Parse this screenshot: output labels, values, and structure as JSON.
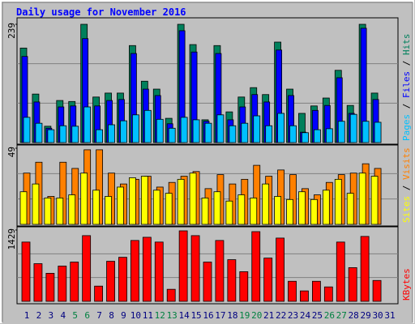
{
  "title": "Daily usage for November 2016",
  "chart_data": [
    {
      "type": "bar",
      "ylim": [
        0,
        239
      ],
      "yticks": [
        239
      ],
      "legend_separator": " / ",
      "series": [
        {
          "name": "Hits",
          "color": "#00805c",
          "values": [
            191,
            98,
            33,
            85,
            83,
            239,
            92,
            100,
            100,
            196,
            124,
            108,
            49,
            239,
            198,
            46,
            196,
            62,
            92,
            111,
            97,
            203,
            108,
            59,
            74,
            90,
            146,
            75,
            239,
            100,
            0
          ]
        },
        {
          "name": "Files",
          "color": "#0000ff",
          "values": [
            174,
            82,
            29,
            72,
            74,
            210,
            74,
            85,
            87,
            180,
            108,
            95,
            38,
            226,
            183,
            43,
            180,
            46,
            72,
            97,
            82,
            187,
            95,
            21,
            65,
            75,
            131,
            59,
            231,
            87,
            0
          ]
        },
        {
          "name": "Pages",
          "color": "#00c0ff",
          "values": [
            51,
            39,
            26,
            34,
            33,
            72,
            26,
            36,
            44,
            56,
            65,
            47,
            29,
            51,
            46,
            39,
            56,
            34,
            39,
            54,
            34,
            59,
            34,
            20,
            26,
            28,
            43,
            57,
            43,
            41,
            0
          ]
        }
      ]
    },
    {
      "type": "bar",
      "ylim": [
        0,
        49
      ],
      "yticks": [
        49
      ],
      "legend_separator": " / ",
      "series": [
        {
          "name": "Visits",
          "color": "#ff8000",
          "values": [
            33,
            40,
            18,
            40,
            36,
            48,
            48,
            33,
            26,
            29,
            31,
            24,
            27,
            31,
            34,
            23,
            32,
            26,
            29,
            38,
            31,
            35,
            32,
            23,
            19,
            27,
            32,
            33,
            39,
            36,
            0
          ]
        },
        {
          "name": "Sites",
          "color": "#ffff00",
          "values": [
            21,
            26,
            17,
            17,
            19,
            33,
            22,
            18,
            24,
            30,
            31,
            22,
            20,
            29,
            33,
            17,
            21,
            15,
            19,
            17,
            26,
            18,
            16,
            21,
            16,
            22,
            29,
            20,
            33,
            31,
            0
          ]
        }
      ]
    },
    {
      "type": "bar",
      "ylim": [
        0,
        1429
      ],
      "yticks": [
        1429
      ],
      "categories": [
        "1",
        "2",
        "3",
        "4",
        "5",
        "6",
        "7",
        "8",
        "9",
        "10",
        "11",
        "12",
        "13",
        "14",
        "15",
        "16",
        "17",
        "18",
        "19",
        "20",
        "21",
        "22",
        "23",
        "24",
        "25",
        "26",
        "27",
        "28",
        "29",
        "30",
        "31"
      ],
      "category_colors": [
        "#000080",
        "#000080",
        "#000080",
        "#000080",
        "#008040",
        "#008040",
        "#000080",
        "#000080",
        "#000080",
        "#000080",
        "#000080",
        "#008040",
        "#008040",
        "#000080",
        "#000080",
        "#000080",
        "#000080",
        "#000080",
        "#008040",
        "#008040",
        "#000080",
        "#000080",
        "#000080",
        "#000080",
        "#000080",
        "#008040",
        "#008040",
        "#000080",
        "#000080",
        "#000080",
        "#000080"
      ],
      "series": [
        {
          "name": "KBytes",
          "color": "#ff0000",
          "values": [
            1188,
            755,
            562,
            707,
            787,
            1317,
            305,
            803,
            883,
            1220,
            1284,
            1188,
            241,
            1413,
            1317,
            787,
            1220,
            835,
            594,
            1397,
            867,
            1268,
            402,
            209,
            402,
            289,
            1188,
            675,
            1301,
            418,
            0
          ]
        }
      ]
    }
  ]
}
